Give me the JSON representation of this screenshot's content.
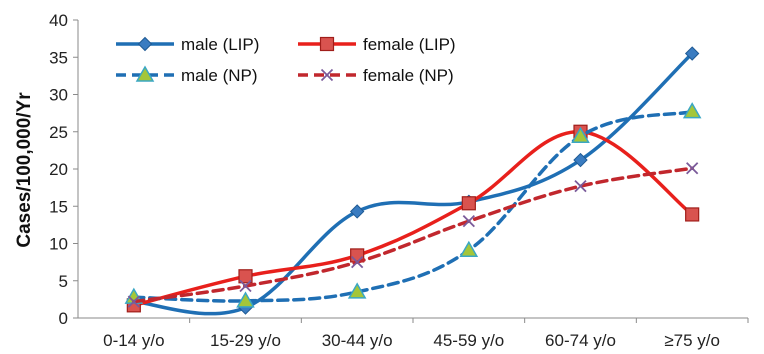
{
  "chart_data": {
    "type": "line",
    "title": "",
    "xlabel": "",
    "ylabel": "Cases/100,000/Yr",
    "ylim": [
      0,
      40
    ],
    "yticks": [
      0,
      5,
      10,
      15,
      20,
      25,
      30,
      35,
      40
    ],
    "grid": false,
    "legend_position": "top-left",
    "categories": [
      "0-14 y/o",
      "15-29 y/o",
      "30-44 y/o",
      "45-59 y/o",
      "60-74 y/o",
      "≥75 y/o"
    ],
    "series": [
      {
        "name": "male (LIP)",
        "values": [
          2.2,
          1.4,
          14.3,
          15.6,
          21.2,
          35.5
        ],
        "color": "#1f6fb4",
        "dash": "solid",
        "marker": "diamond"
      },
      {
        "name": "female (LIP)",
        "values": [
          1.7,
          5.6,
          8.4,
          15.4,
          25.0,
          13.9
        ],
        "color": "#e8201c",
        "dash": "solid",
        "marker": "square"
      },
      {
        "name": "male (NP)",
        "values": [
          2.8,
          2.3,
          3.5,
          9.1,
          24.4,
          27.7
        ],
        "color": "#1f6fb4",
        "dash": "dashed",
        "marker": "triangle"
      },
      {
        "name": "female (NP)",
        "values": [
          2.2,
          4.3,
          7.5,
          13.0,
          17.7,
          20.1
        ],
        "color": "#c1272d",
        "dash": "dashed",
        "marker": "x"
      }
    ]
  }
}
